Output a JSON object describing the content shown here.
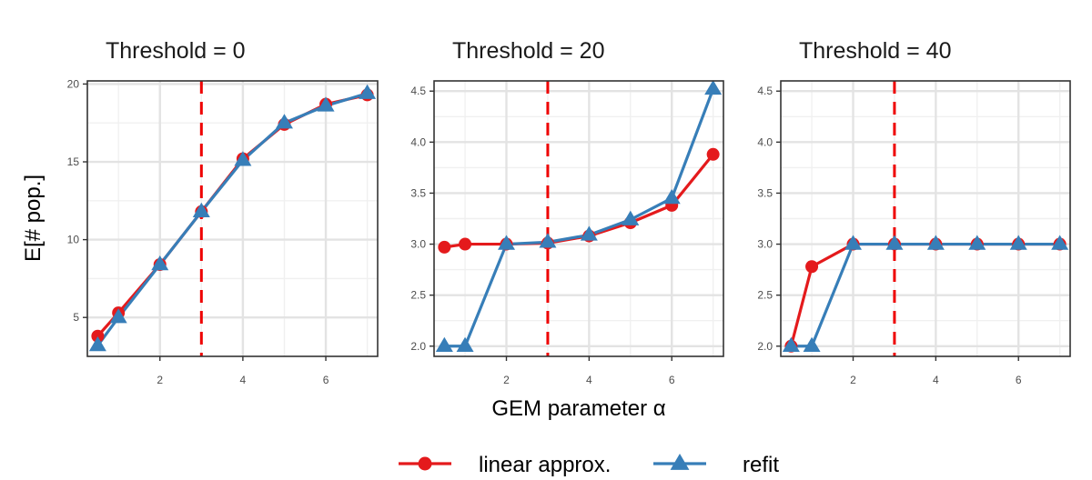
{
  "chart_data": {
    "type": "line",
    "xlabel": "GEM parameter α",
    "ylabel": "E[# pop.]",
    "legend": {
      "placement": "bottom"
    },
    "grid": true,
    "colors": {
      "linear": "#E41A1C",
      "refit": "#377EB8",
      "ref_line": "#EE0000"
    },
    "ref_line_x": 3,
    "legend_entries": [
      {
        "key": "linear",
        "label": "linear approx.",
        "marker": "circle"
      },
      {
        "key": "refit",
        "label": "refit",
        "marker": "triangle"
      }
    ],
    "panels": [
      {
        "title": "Threshold = 0",
        "xlim": [
          0.25,
          7.25
        ],
        "ylim": [
          2.5,
          20.2
        ],
        "xticks": [
          2,
          4,
          6
        ],
        "yticks": [
          5,
          10,
          15,
          20
        ],
        "ytick_labels": [
          "5",
          "10",
          "15",
          "20"
        ],
        "series": [
          {
            "key": "linear",
            "x": [
              0.5,
              1,
              2,
              3,
              4,
              5,
              6,
              7
            ],
            "y": [
              3.8,
              5.3,
              8.4,
              11.8,
              15.2,
              17.4,
              18.7,
              19.3
            ]
          },
          {
            "key": "refit",
            "x": [
              0.5,
              1,
              2,
              3,
              4,
              5,
              6,
              7
            ],
            "y": [
              3.2,
              5.0,
              8.4,
              11.8,
              15.1,
              17.5,
              18.6,
              19.4
            ]
          }
        ]
      },
      {
        "title": "Threshold = 20",
        "xlim": [
          0.25,
          7.25
        ],
        "ylim": [
          1.9,
          4.6
        ],
        "xticks": [
          2,
          4,
          6
        ],
        "yticks": [
          2.0,
          2.5,
          3.0,
          3.5,
          4.0,
          4.5
        ],
        "ytick_labels": [
          "2.0",
          "2.5",
          "3.0",
          "3.5",
          "4.0",
          "4.5"
        ],
        "series": [
          {
            "key": "linear",
            "x": [
              0.5,
              1,
              2,
              3,
              4,
              5,
              6,
              7
            ],
            "y": [
              2.97,
              3.0,
              3.0,
              3.01,
              3.08,
              3.21,
              3.38,
              3.88
            ]
          },
          {
            "key": "refit",
            "x": [
              0.5,
              1,
              2,
              3,
              4,
              5,
              6,
              7
            ],
            "y": [
              2.0,
              2.0,
              3.0,
              3.02,
              3.09,
              3.24,
              3.45,
              4.52
            ]
          }
        ]
      },
      {
        "title": "Threshold = 40",
        "xlim": [
          0.25,
          7.25
        ],
        "ylim": [
          1.9,
          4.6
        ],
        "xticks": [
          2,
          4,
          6
        ],
        "yticks": [
          2.0,
          2.5,
          3.0,
          3.5,
          4.0,
          4.5
        ],
        "ytick_labels": [
          "2.0",
          "2.5",
          "3.0",
          "3.5",
          "4.0",
          "4.5"
        ],
        "series": [
          {
            "key": "linear",
            "x": [
              0.5,
              1,
              2,
              3,
              4,
              5,
              6,
              7
            ],
            "y": [
              2.0,
              2.78,
              3.0,
              3.0,
              3.0,
              3.0,
              3.0,
              3.0
            ]
          },
          {
            "key": "refit",
            "x": [
              0.5,
              1,
              2,
              3,
              4,
              5,
              6,
              7
            ],
            "y": [
              2.0,
              2.0,
              3.0,
              3.0,
              3.0,
              3.0,
              3.0,
              3.0
            ]
          }
        ]
      }
    ]
  }
}
